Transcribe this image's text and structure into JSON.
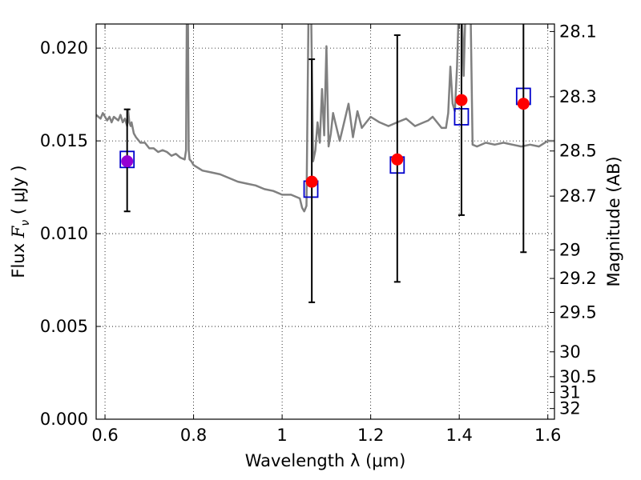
{
  "chart_data": {
    "type": "scatter",
    "xlabel": "Wavelength  λ (μm)",
    "ylabel": "Flux  F_ν  ( μJy )",
    "ylabel_parts": {
      "prefix": "Flux  ",
      "symbol": "F",
      "subscript": "ν",
      "suffix": "  ( μJy )"
    },
    "y2label": "Magnitude (AB)",
    "xlim": [
      0.58,
      1.615
    ],
    "ylim": [
      0.0,
      0.0213
    ],
    "grid": true,
    "x_ticks": [
      0.6,
      0.8,
      1.0,
      1.2,
      1.4,
      1.6
    ],
    "x_tick_labels": [
      "0.6",
      "0.8",
      "1",
      "1.2",
      "1.4",
      "1.6"
    ],
    "y_ticks": [
      0.0,
      0.005,
      0.01,
      0.015,
      0.02
    ],
    "y_tick_labels": [
      "0.000",
      "0.005",
      "0.010",
      "0.015",
      "0.020"
    ],
    "mag_ticks": [
      28.1,
      28.3,
      28.5,
      28.7,
      29,
      29.2,
      29.5,
      30,
      30.5,
      31,
      32
    ],
    "mag_tick_labels": [
      "28.1",
      "28.3",
      "28.5",
      "28.7",
      "29",
      "29.2",
      "29.5",
      "30",
      "30.5",
      "31",
      "32"
    ],
    "series": [
      {
        "name": "model_sed",
        "kind": "line",
        "color": "#808080",
        "x": [
          0.58,
          0.59,
          0.595,
          0.605,
          0.61,
          0.615,
          0.62,
          0.63,
          0.635,
          0.64,
          0.645,
          0.65,
          0.652,
          0.655,
          0.658,
          0.66,
          0.665,
          0.67,
          0.68,
          0.69,
          0.7,
          0.71,
          0.72,
          0.73,
          0.74,
          0.75,
          0.76,
          0.77,
          0.78,
          0.783,
          0.785,
          0.787,
          0.789,
          0.791,
          0.795,
          0.8,
          0.82,
          0.84,
          0.86,
          0.88,
          0.9,
          0.92,
          0.94,
          0.96,
          0.98,
          1.0,
          1.02,
          1.04,
          1.045,
          1.05,
          1.055,
          1.06,
          1.065,
          1.07,
          1.075,
          1.08,
          1.085,
          1.09,
          1.095,
          1.1,
          1.105,
          1.11,
          1.115,
          1.12,
          1.13,
          1.14,
          1.15,
          1.16,
          1.17,
          1.18,
          1.19,
          1.2,
          1.22,
          1.24,
          1.26,
          1.28,
          1.3,
          1.32,
          1.33,
          1.34,
          1.35,
          1.36,
          1.37,
          1.375,
          1.38,
          1.385,
          1.39,
          1.395,
          1.4,
          1.405,
          1.41,
          1.415,
          1.42,
          1.425,
          1.43,
          1.44,
          1.46,
          1.48,
          1.5,
          1.52,
          1.54,
          1.56,
          1.58,
          1.6,
          1.615
        ],
        "values": [
          0.0164,
          0.0162,
          0.0165,
          0.0161,
          0.0163,
          0.016,
          0.0163,
          0.0161,
          0.0164,
          0.016,
          0.0162,
          0.0158,
          0.0167,
          0.016,
          0.0158,
          0.016,
          0.0154,
          0.0152,
          0.0149,
          0.0149,
          0.0146,
          0.0146,
          0.0144,
          0.0145,
          0.0144,
          0.0142,
          0.0143,
          0.0141,
          0.014,
          0.0145,
          0.023,
          0.023,
          0.0145,
          0.014,
          0.0139,
          0.0137,
          0.0134,
          0.0133,
          0.0132,
          0.013,
          0.0128,
          0.0127,
          0.0126,
          0.0124,
          0.0123,
          0.0121,
          0.0121,
          0.0119,
          0.0114,
          0.0112,
          0.0115,
          0.023,
          0.023,
          0.0139,
          0.0145,
          0.016,
          0.0149,
          0.0178,
          0.0153,
          0.0201,
          0.0147,
          0.0154,
          0.0165,
          0.016,
          0.015,
          0.016,
          0.017,
          0.0152,
          0.0166,
          0.0157,
          0.016,
          0.0163,
          0.016,
          0.0158,
          0.016,
          0.0162,
          0.0158,
          0.016,
          0.0161,
          0.0163,
          0.016,
          0.0157,
          0.0157,
          0.0165,
          0.019,
          0.017,
          0.0166,
          0.019,
          0.023,
          0.023,
          0.0185,
          0.023,
          0.023,
          0.023,
          0.0148,
          0.0147,
          0.0149,
          0.0148,
          0.0149,
          0.0148,
          0.0147,
          0.0148,
          0.0147,
          0.015,
          0.015
        ]
      },
      {
        "name": "model_photometry",
        "kind": "square",
        "color": "#0000cc",
        "x": [
          0.65,
          1.065,
          1.26,
          1.405,
          1.545
        ],
        "values": [
          0.014,
          0.0124,
          0.0137,
          0.0163,
          0.0174
        ]
      },
      {
        "name": "observed_flux",
        "kind": "point_errorbar",
        "color": "#ff0000",
        "errorbar_color": "#000000",
        "x": [
          0.65,
          1.067,
          1.26,
          1.405,
          1.545
        ],
        "values": [
          0.0139,
          0.0128,
          0.014,
          0.0172,
          0.017
        ],
        "err_low": [
          0.0112,
          0.0063,
          0.0074,
          0.011,
          0.009
        ],
        "err_high": [
          0.0167,
          0.0194,
          0.0207,
          0.023,
          0.023
        ]
      }
    ],
    "point_colors": [
      "#9400d3",
      "#ff0000",
      "#ff0000",
      "#ff0000",
      "#ff0000"
    ]
  }
}
